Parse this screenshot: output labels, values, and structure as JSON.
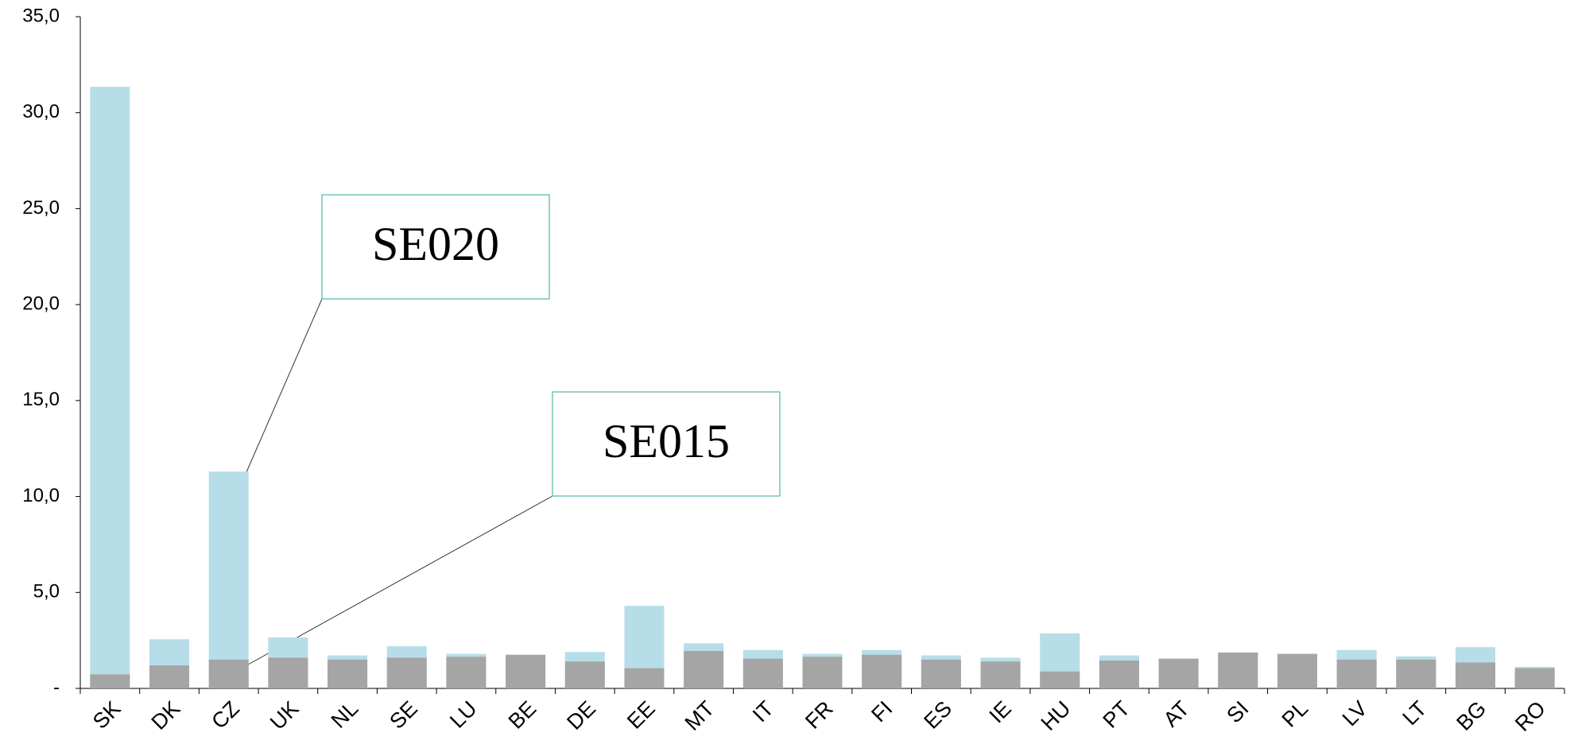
{
  "chart_data": {
    "type": "bar",
    "categories": [
      "SK",
      "DK",
      "CZ",
      "UK",
      "NL",
      "SE",
      "LU",
      "BE",
      "DE",
      "EE",
      "MT",
      "IT",
      "FR",
      "FI",
      "ES",
      "IE",
      "HU",
      "PT",
      "AT",
      "SI",
      "PL",
      "LV",
      "LT",
      "BG",
      "RO"
    ],
    "series": [
      {
        "name": "SE020",
        "color": "#b7dde8",
        "values": [
          31.35,
          2.56,
          11.3,
          2.66,
          1.72,
          2.2,
          1.8,
          1.75,
          1.9,
          4.3,
          2.35,
          2.0,
          1.8,
          2.0,
          1.72,
          1.6,
          2.87,
          1.72,
          1.55,
          1.87,
          1.8,
          2.0,
          1.67,
          2.15,
          1.12
        ]
      },
      {
        "name": "SE015",
        "color": "#a5a5a5",
        "values": [
          0.73,
          1.2,
          1.5,
          1.6,
          1.5,
          1.6,
          1.65,
          1.75,
          1.4,
          1.05,
          1.95,
          1.55,
          1.65,
          1.75,
          1.5,
          1.4,
          0.88,
          1.45,
          1.55,
          1.87,
          1.8,
          1.5,
          1.5,
          1.35,
          1.05
        ]
      }
    ],
    "ylim": [
      0,
      35
    ],
    "yticks": [
      {
        "value": 0,
        "label": "-"
      },
      {
        "value": 5,
        "label": "5,0"
      },
      {
        "value": 10,
        "label": "10,0"
      },
      {
        "value": 15,
        "label": "15,0"
      },
      {
        "value": 20,
        "label": "20,0"
      },
      {
        "value": 25,
        "label": "25,0"
      },
      {
        "value": 30,
        "label": "30,0"
      },
      {
        "value": 35,
        "label": "35,0"
      }
    ],
    "grid": false
  }
}
